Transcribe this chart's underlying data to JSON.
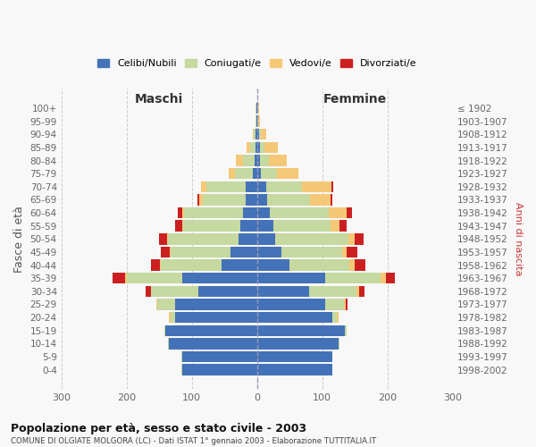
{
  "age_groups": [
    "100+",
    "95-99",
    "90-94",
    "85-89",
    "80-84",
    "75-79",
    "70-74",
    "65-69",
    "60-64",
    "55-59",
    "50-54",
    "45-49",
    "40-44",
    "35-39",
    "30-34",
    "25-29",
    "20-24",
    "15-19",
    "10-14",
    "5-9",
    "0-4"
  ],
  "birth_years": [
    "≤ 1902",
    "1903-1907",
    "1908-1912",
    "1913-1917",
    "1918-1922",
    "1923-1927",
    "1928-1932",
    "1933-1937",
    "1938-1942",
    "1943-1947",
    "1948-1952",
    "1953-1957",
    "1958-1962",
    "1963-1967",
    "1968-1972",
    "1973-1977",
    "1978-1982",
    "1983-1987",
    "1988-1992",
    "1993-1997",
    "1998-2002"
  ],
  "maschi": {
    "celibi": [
      1,
      1,
      2,
      3,
      4,
      6,
      18,
      18,
      22,
      25,
      28,
      40,
      55,
      115,
      90,
      125,
      125,
      140,
      135,
      115,
      115
    ],
    "coniugati": [
      1,
      1,
      3,
      8,
      18,
      28,
      60,
      65,
      90,
      88,
      108,
      92,
      92,
      85,
      72,
      28,
      8,
      2,
      2,
      1,
      1
    ],
    "vedovi": [
      0,
      0,
      2,
      5,
      10,
      10,
      8,
      5,
      3,
      2,
      2,
      2,
      2,
      2,
      1,
      2,
      2,
      0,
      0,
      0,
      0
    ],
    "divorziati": [
      0,
      0,
      0,
      0,
      0,
      0,
      0,
      3,
      6,
      10,
      12,
      14,
      14,
      20,
      8,
      0,
      0,
      0,
      0,
      0,
      0
    ]
  },
  "femmine": {
    "nubili": [
      1,
      1,
      3,
      4,
      4,
      6,
      14,
      16,
      20,
      25,
      28,
      38,
      50,
      105,
      80,
      105,
      115,
      135,
      125,
      115,
      115
    ],
    "coniugate": [
      1,
      1,
      3,
      8,
      14,
      25,
      55,
      65,
      90,
      88,
      112,
      92,
      92,
      85,
      72,
      28,
      8,
      2,
      2,
      1,
      1
    ],
    "vedove": [
      1,
      2,
      8,
      20,
      28,
      32,
      45,
      32,
      28,
      14,
      10,
      8,
      8,
      8,
      5,
      3,
      2,
      0,
      0,
      0,
      0
    ],
    "divorziate": [
      0,
      0,
      0,
      0,
      0,
      0,
      3,
      3,
      8,
      10,
      14,
      16,
      16,
      14,
      8,
      3,
      0,
      0,
      0,
      0,
      0
    ]
  },
  "colors": {
    "celibi": "#4472b8",
    "coniugati": "#c5d9a0",
    "vedovi": "#f5c878",
    "divorziati": "#cc2020"
  },
  "xlim": [
    -300,
    300
  ],
  "xticks": [
    -300,
    -200,
    -100,
    0,
    100,
    200,
    300
  ],
  "xticklabels": [
    "300",
    "200",
    "100",
    "0",
    "100",
    "200",
    "300"
  ],
  "title": "Popolazione per età, sesso e stato civile - 2003",
  "subtitle": "COMUNE DI OLGIATE MOLGORA (LC) - Dati ISTAT 1° gennaio 2003 - Elaborazione TUTTITALIA.IT",
  "ylabel_left": "Fasce di età",
  "ylabel_right": "Anni di nascita",
  "maschi_label": "Maschi",
  "femmine_label": "Femmine",
  "legend_labels": [
    "Celibi/Nubili",
    "Coniugati/e",
    "Vedovi/e",
    "Divorziati/e"
  ],
  "bg_color": "#f8f8f8",
  "grid_color": "#cccccc"
}
